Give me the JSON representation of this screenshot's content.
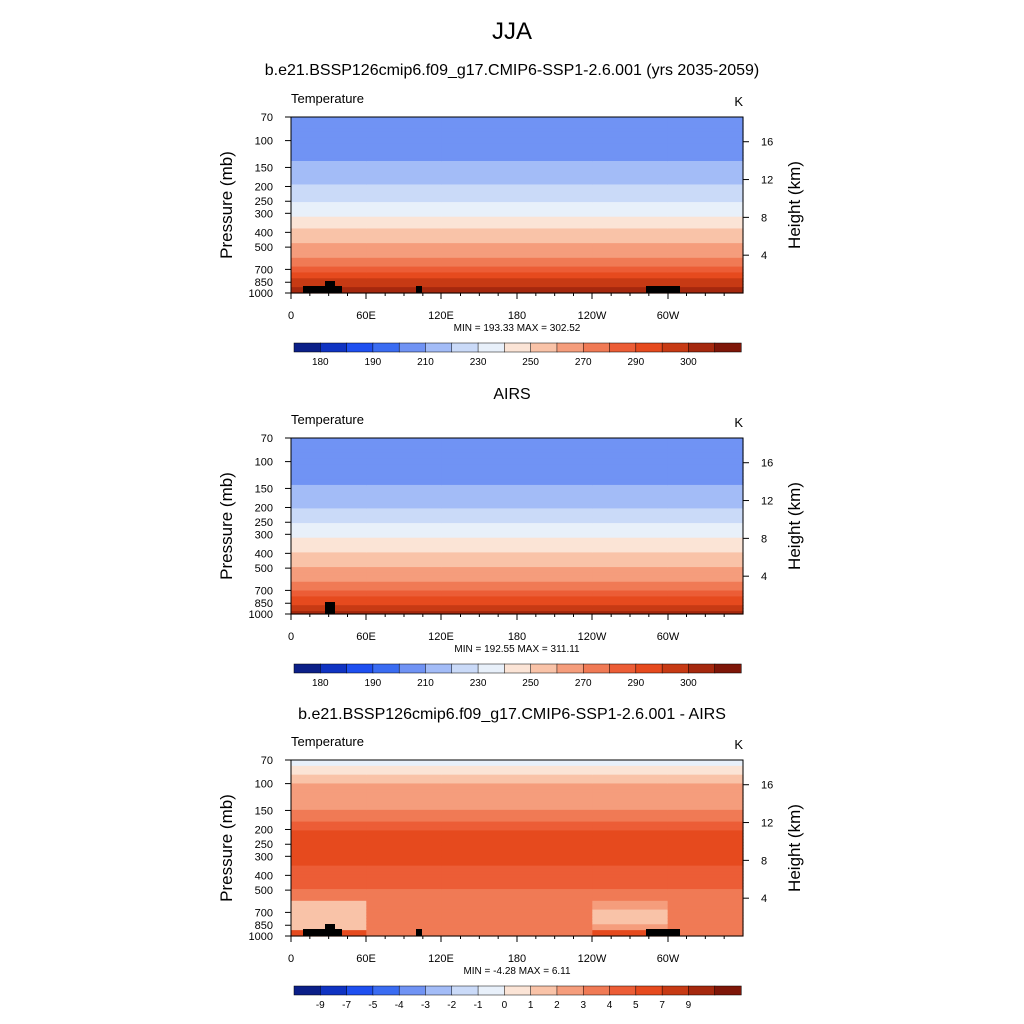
{
  "figure": {
    "title": "JJA"
  },
  "chart_data": [
    {
      "type": "heatmap",
      "title": "b.e21.BSSP126cmip6.f09_g17.CMIP6-SSP1-2.6.001 (yrs 2035-2059)",
      "left_label": "Temperature",
      "units": "K",
      "ylabel": "Pressure (mb)",
      "y2label": "Height (km)",
      "pressure_ticks": [
        70,
        100,
        150,
        200,
        250,
        300,
        400,
        500,
        700,
        850,
        1000
      ],
      "height_ticks": [
        4,
        8,
        12,
        16
      ],
      "x_ticks": [
        "0",
        "60E",
        "120E",
        "180",
        "120W",
        "60W"
      ],
      "stats": "MIN = 193.33  MAX = 302.52",
      "colorbar_labels": [
        "180",
        "190",
        "210",
        "230",
        "250",
        "270",
        "290",
        "300"
      ],
      "colors": [
        "#0b1f88",
        "#0f33c2",
        "#1e4ff0",
        "#3a6cf2",
        "#7093f4",
        "#a3bcf7",
        "#cadaf8",
        "#e8f0fa",
        "#fbe4d6",
        "#f9c3a8",
        "#f59d7c",
        "#f07a55",
        "#ec5d36",
        "#e64a1e",
        "#c73a14",
        "#a5280e",
        "#7e1608"
      ],
      "profile": [
        {
          "p": 70,
          "t": 207
        },
        {
          "p": 80,
          "t": 205
        },
        {
          "p": 100,
          "t": 205
        },
        {
          "p": 130,
          "t": 209
        },
        {
          "p": 150,
          "t": 212
        },
        {
          "p": 170,
          "t": 216
        },
        {
          "p": 200,
          "t": 221
        },
        {
          "p": 250,
          "t": 230
        },
        {
          "p": 300,
          "t": 238
        },
        {
          "p": 400,
          "t": 252
        },
        {
          "p": 500,
          "t": 262
        },
        {
          "p": 600,
          "t": 270
        },
        {
          "p": 700,
          "t": 277
        },
        {
          "p": 850,
          "t": 287
        },
        {
          "p": 925,
          "t": 291
        },
        {
          "p": 1000,
          "t": 295
        }
      ]
    },
    {
      "type": "heatmap",
      "title": "AIRS",
      "left_label": "Temperature",
      "units": "K",
      "ylabel": "Pressure (mb)",
      "y2label": "Height (km)",
      "pressure_ticks": [
        70,
        100,
        150,
        200,
        250,
        300,
        400,
        500,
        700,
        850,
        1000
      ],
      "height_ticks": [
        4,
        8,
        12,
        16
      ],
      "x_ticks": [
        "0",
        "60E",
        "120E",
        "180",
        "120W",
        "60W"
      ],
      "stats": "MIN = 192.55  MAX = 311.11",
      "colorbar_labels": [
        "180",
        "190",
        "210",
        "230",
        "250",
        "270",
        "290",
        "300"
      ],
      "colors": [
        "#0b1f88",
        "#0f33c2",
        "#1e4ff0",
        "#3a6cf2",
        "#7093f4",
        "#a3bcf7",
        "#cadaf8",
        "#e8f0fa",
        "#fbe4d6",
        "#f9c3a8",
        "#f59d7c",
        "#f07a55",
        "#ec5d36",
        "#e64a1e",
        "#c73a14",
        "#a5280e",
        "#7e1608"
      ],
      "profile": [
        {
          "p": 70,
          "t": 207
        },
        {
          "p": 80,
          "t": 205
        },
        {
          "p": 100,
          "t": 205
        },
        {
          "p": 130,
          "t": 208
        },
        {
          "p": 150,
          "t": 211
        },
        {
          "p": 170,
          "t": 215
        },
        {
          "p": 200,
          "t": 220
        },
        {
          "p": 250,
          "t": 229
        },
        {
          "p": 300,
          "t": 237
        },
        {
          "p": 400,
          "t": 251
        },
        {
          "p": 500,
          "t": 261
        },
        {
          "p": 600,
          "t": 268
        },
        {
          "p": 700,
          "t": 275
        },
        {
          "p": 850,
          "t": 284
        },
        {
          "p": 925,
          "t": 289
        },
        {
          "p": 1000,
          "t": 294
        }
      ]
    },
    {
      "type": "heatmap",
      "title": "b.e21.BSSP126cmip6.f09_g17.CMIP6-SSP1-2.6.001 - AIRS",
      "left_label": "Temperature",
      "units": "K",
      "ylabel": "Pressure (mb)",
      "y2label": "Height (km)",
      "pressure_ticks": [
        70,
        100,
        150,
        200,
        250,
        300,
        400,
        500,
        700,
        850,
        1000
      ],
      "height_ticks": [
        4,
        8,
        12,
        16
      ],
      "x_ticks": [
        "0",
        "60E",
        "120E",
        "180",
        "120W",
        "60W"
      ],
      "stats": "MIN = -4.28  MAX =  6.11",
      "colorbar_labels": [
        "-9",
        "-7",
        "-5",
        "-4",
        "-3",
        "-2",
        "-1",
        "0",
        "1",
        "2",
        "3",
        "4",
        "5",
        "7",
        "9"
      ],
      "colors": [
        "#0b1f88",
        "#0f33c2",
        "#1e4ff0",
        "#3a6cf2",
        "#7093f4",
        "#a3bcf7",
        "#cadaf8",
        "#e8f0fa",
        "#fbe4d6",
        "#f9c3a8",
        "#f59d7c",
        "#f07a55",
        "#ec5d36",
        "#e64a1e",
        "#c73a14",
        "#a5280e",
        "#7e1608"
      ],
      "profile": [
        {
          "p": 70,
          "t": -1.5
        },
        {
          "p": 80,
          "t": -0.5
        },
        {
          "p": 100,
          "t": 1.0
        },
        {
          "p": 130,
          "t": 1.5
        },
        {
          "p": 150,
          "t": 2.0
        },
        {
          "p": 170,
          "t": 2.5
        },
        {
          "p": 200,
          "t": 4.0
        },
        {
          "p": 250,
          "t": 4.3
        },
        {
          "p": 300,
          "t": 4.2
        },
        {
          "p": 400,
          "t": 3.8
        },
        {
          "p": 500,
          "t": 3.0
        },
        {
          "p": 600,
          "t": 2.5
        },
        {
          "p": 700,
          "t": 2.0
        },
        {
          "p": 850,
          "t": 2.2
        },
        {
          "p": 925,
          "t": 2.4
        },
        {
          "p": 1000,
          "t": 2.0
        }
      ]
    }
  ]
}
